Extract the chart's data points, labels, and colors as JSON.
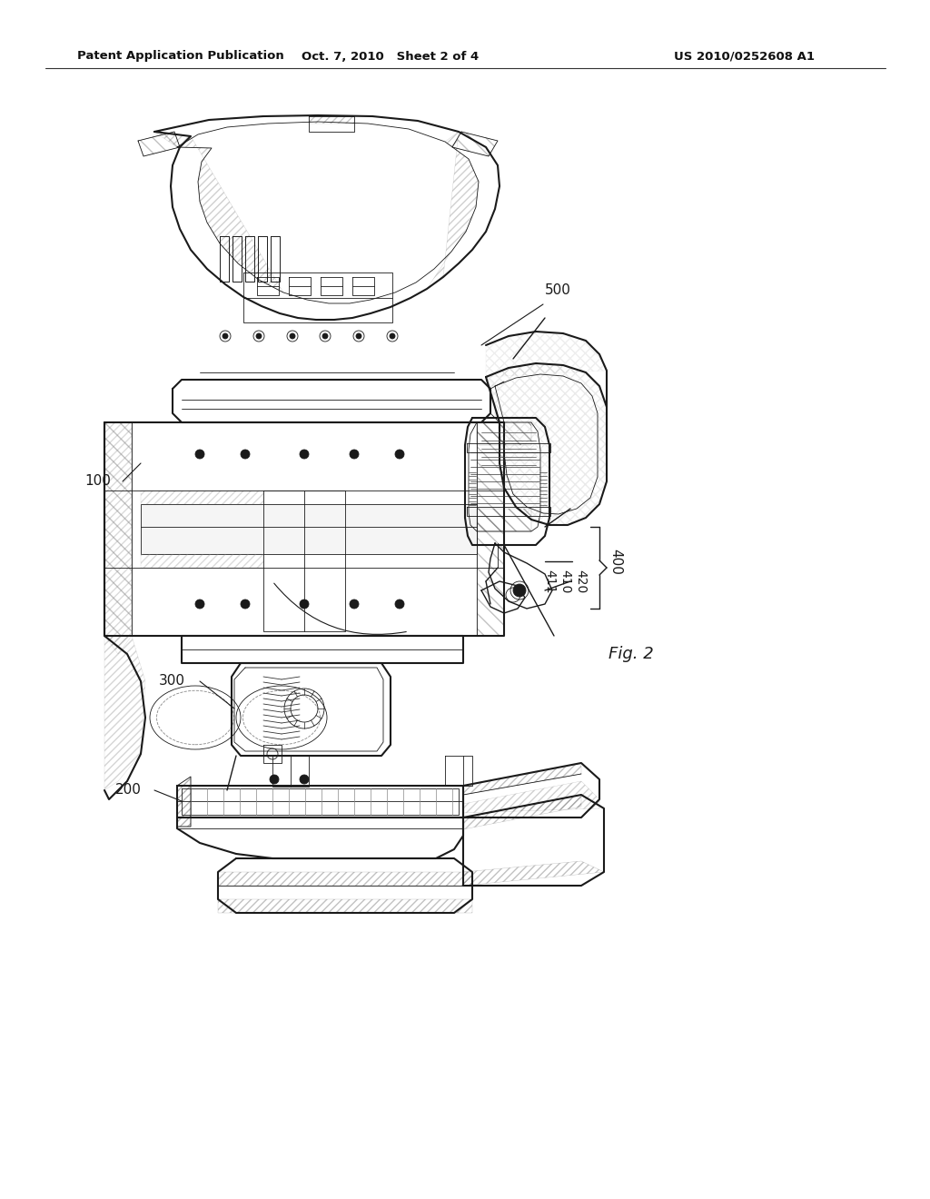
{
  "bg_color": "#ffffff",
  "header_left": "Patent Application Publication",
  "header_mid": "Oct. 7, 2010   Sheet 2 of 4",
  "header_right": "US 2010/0252608 A1",
  "fig_label": "Fig. 2",
  "lc": "#1a1a1a",
  "lw_main": 1.0,
  "lw_thin": 0.6,
  "lw_thick": 1.5,
  "label_fs": 10,
  "header_fs": 9.5
}
